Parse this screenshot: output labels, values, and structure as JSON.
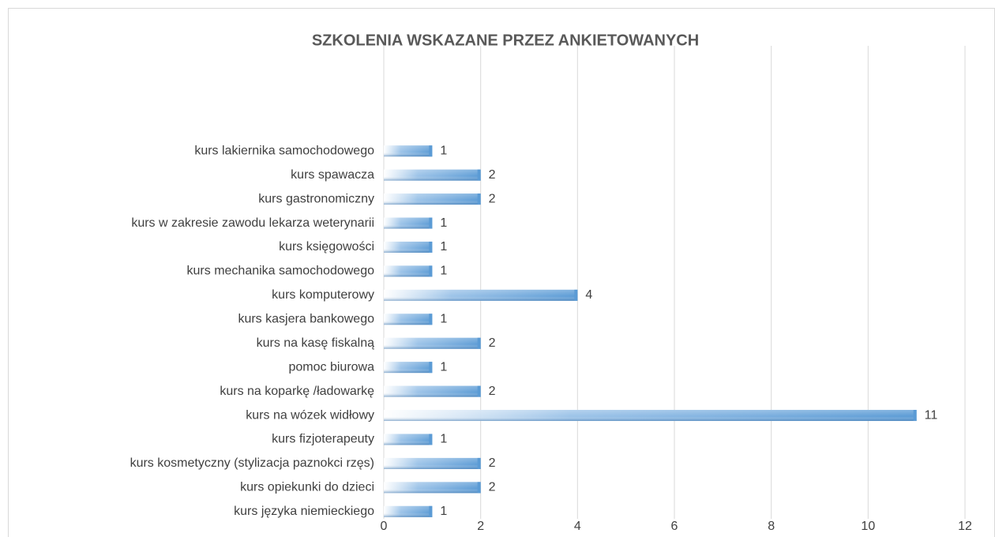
{
  "chart_data": {
    "type": "bar",
    "orientation": "horizontal",
    "title": "SZKOLENIA WSKAZANE PRZEZ ANKIETOWANYCH",
    "categories": [
      "kurs lakiernika samochodowego",
      "kurs spawacza",
      "kurs gastronomiczny",
      "kurs w zakresie zawodu lekarza weterynarii",
      "kurs księgowości",
      "kurs mechanika samochodowego",
      "kurs komputerowy",
      "kurs kasjera bankowego",
      "kurs na kasę fiskalną",
      "pomoc biurowa",
      "kurs na koparkę /ładowarkę",
      "kurs na wózek widłowy",
      "kurs fizjoterapeuty",
      "kurs kosmetyczny (stylizacja paznokci rzęs)",
      "kurs opiekunki do dzieci",
      "kurs języka niemieckiego"
    ],
    "values": [
      1,
      2,
      2,
      1,
      1,
      1,
      4,
      1,
      2,
      1,
      2,
      11,
      1,
      2,
      2,
      1
    ],
    "color": "#5b9bd5",
    "xlim": [
      0,
      12
    ],
    "xticks": [
      0,
      2,
      4,
      6,
      8,
      10,
      12
    ],
    "grid": true
  }
}
